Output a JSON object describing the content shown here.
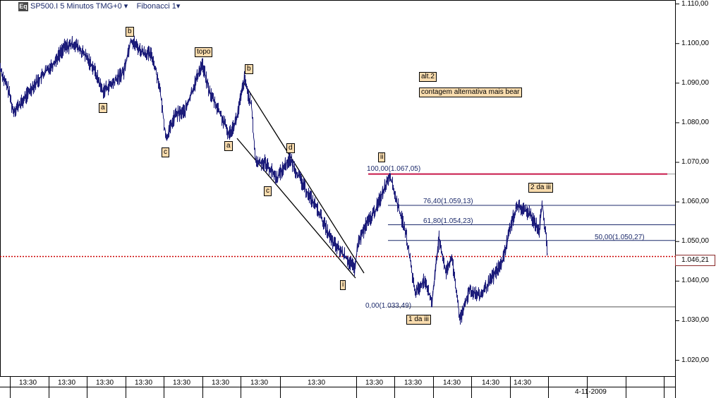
{
  "header": {
    "icon_label": "Eq",
    "symbol": "SP500.I 5 Minutos TMG+0",
    "study": "Fibonacci 1"
  },
  "colors": {
    "price_line": "#1c1c7a",
    "fib_top": "#c8184a",
    "fib_line": "#1c2a6b",
    "current_price": "#cc0000",
    "label_bg": "#f9dcae"
  },
  "chart_data": {
    "type": "line",
    "y_axis": {
      "range": [
        1016,
        1111
      ],
      "ticks": [
        "1.110,00",
        "1.100,00",
        "1.090,00",
        "1.080,00",
        "1.070,00",
        "1.060,00",
        "1.050,00",
        "1.040,00",
        "1.030,00",
        "1.020,00"
      ],
      "tick_values": [
        1110,
        1100,
        1090,
        1080,
        1070,
        1060,
        1050,
        1040,
        1030,
        1020
      ]
    },
    "x_axis": {
      "ticks": [
        "13:30",
        "13:30",
        "13:30",
        "13:30",
        "13:30",
        "13:30",
        "13:30",
        "13:30",
        "13:30",
        "13:30",
        "14:30",
        "14:30",
        "14:30"
      ],
      "date_label": "4-11-2009"
    },
    "series_anchors": [
      {
        "t": 0,
        "v": 1094
      },
      {
        "t": 5,
        "v": 1091
      },
      {
        "t": 12,
        "v": 1088
      },
      {
        "t": 18,
        "v": 1083
      },
      {
        "t": 30,
        "v": 1085
      },
      {
        "t": 45,
        "v": 1089
      },
      {
        "t": 60,
        "v": 1092
      },
      {
        "t": 75,
        "v": 1095
      },
      {
        "t": 90,
        "v": 1099
      },
      {
        "t": 105,
        "v": 1100
      },
      {
        "t": 120,
        "v": 1097
      },
      {
        "t": 132,
        "v": 1094
      },
      {
        "t": 145,
        "v": 1088
      },
      {
        "t": 160,
        "v": 1090
      },
      {
        "t": 175,
        "v": 1093
      },
      {
        "t": 185,
        "v": 1101
      },
      {
        "t": 200,
        "v": 1098
      },
      {
        "t": 215,
        "v": 1097
      },
      {
        "t": 225,
        "v": 1090
      },
      {
        "t": 235,
        "v": 1076
      },
      {
        "t": 248,
        "v": 1082
      },
      {
        "t": 262,
        "v": 1083
      },
      {
        "t": 278,
        "v": 1091
      },
      {
        "t": 286,
        "v": 1095
      },
      {
        "t": 296,
        "v": 1088
      },
      {
        "t": 310,
        "v": 1083
      },
      {
        "t": 324,
        "v": 1077
      },
      {
        "t": 335,
        "v": 1081
      },
      {
        "t": 346,
        "v": 1091
      },
      {
        "t": 356,
        "v": 1084
      },
      {
        "t": 362,
        "v": 1070
      },
      {
        "t": 375,
        "v": 1070
      },
      {
        "t": 392,
        "v": 1066
      },
      {
        "t": 410,
        "v": 1071
      },
      {
        "t": 430,
        "v": 1064
      },
      {
        "t": 450,
        "v": 1058
      },
      {
        "t": 470,
        "v": 1050
      },
      {
        "t": 490,
        "v": 1046
      },
      {
        "t": 502,
        "v": 1043
      },
      {
        "t": 508,
        "v": 1050
      },
      {
        "t": 518,
        "v": 1054
      },
      {
        "t": 532,
        "v": 1058
      },
      {
        "t": 552,
        "v": 1067
      },
      {
        "t": 562,
        "v": 1060
      },
      {
        "t": 575,
        "v": 1052
      },
      {
        "t": 588,
        "v": 1037
      },
      {
        "t": 600,
        "v": 1040
      },
      {
        "t": 612,
        "v": 1035
      },
      {
        "t": 622,
        "v": 1051
      },
      {
        "t": 632,
        "v": 1042
      },
      {
        "t": 640,
        "v": 1046
      },
      {
        "t": 652,
        "v": 1030
      },
      {
        "t": 665,
        "v": 1038
      },
      {
        "t": 680,
        "v": 1036
      },
      {
        "t": 698,
        "v": 1041
      },
      {
        "t": 712,
        "v": 1045
      },
      {
        "t": 722,
        "v": 1053
      },
      {
        "t": 732,
        "v": 1059
      },
      {
        "t": 750,
        "v": 1057
      },
      {
        "t": 764,
        "v": 1053
      },
      {
        "t": 768,
        "v": 1060
      },
      {
        "t": 776,
        "v": 1047
      }
    ]
  },
  "fibonacci": {
    "levels": [
      {
        "label": "100,00(1.067,05)",
        "value": 1067.05
      },
      {
        "label": "76,40(1.059,13)",
        "value": 1059.13
      },
      {
        "label": "61,80(1.054,23)",
        "value": 1054.23
      },
      {
        "label": "50,00(1.050,27)",
        "value": 1050.27
      },
      {
        "label": "0,00(1.033,49)",
        "value": 1033.49
      }
    ]
  },
  "current_price": {
    "label": "1.046,21",
    "value": 1046.21
  },
  "wave_labels": [
    {
      "text": "b"
    },
    {
      "text": "topo"
    },
    {
      "text": "b"
    },
    {
      "text": "a"
    },
    {
      "text": "c"
    },
    {
      "text": "a"
    },
    {
      "text": "d"
    },
    {
      "text": "c"
    },
    {
      "text": "i"
    },
    {
      "text": "ii"
    },
    {
      "text": "1 da iii"
    },
    {
      "text": "2 da iii"
    }
  ],
  "annotations": {
    "alt": "alt.2",
    "note": "contagem alternativa mais bear"
  }
}
